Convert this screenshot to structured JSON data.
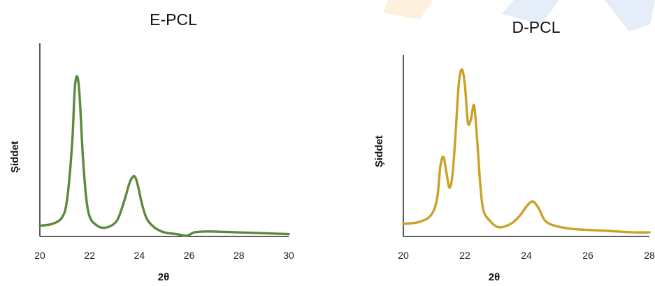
{
  "chart_data": [
    {
      "type": "line",
      "title": "E-PCL",
      "xlabel": "2θ",
      "ylabel": "Şiddet",
      "xlim": [
        20,
        30
      ],
      "ylim": [
        0,
        100
      ],
      "xticks": [
        "20",
        "22",
        "24",
        "26",
        "28",
        "30"
      ],
      "grid": false,
      "legend": "none",
      "color": "#5a8a3c",
      "series": [
        {
          "x": [
            20.0,
            20.5,
            20.9,
            21.1,
            21.3,
            21.4,
            21.5,
            21.6,
            21.75,
            21.95,
            22.3,
            22.7,
            23.1,
            23.4,
            23.6,
            23.75,
            23.85,
            23.95,
            24.1,
            24.3,
            24.6,
            25.0,
            25.5,
            25.9,
            26.2,
            26.6,
            27.0,
            28.0,
            29.0,
            30.0
          ],
          "y": [
            6,
            7,
            11,
            22,
            55,
            86,
            94,
            82,
            42,
            14,
            6,
            5,
            9,
            21,
            31,
            35,
            34,
            29,
            19,
            10,
            5,
            2,
            1,
            0,
            2,
            2.5,
            2.5,
            2,
            1.5,
            1
          ]
        }
      ]
    },
    {
      "type": "line",
      "title": "D-PCL",
      "xlabel": "2θ",
      "ylabel": "Şiddet",
      "xlim": [
        20,
        28
      ],
      "ylim": [
        0,
        100
      ],
      "xticks": [
        "20",
        "22",
        "24",
        "26",
        "28"
      ],
      "grid": false,
      "legend": "none",
      "color": "#c9a227",
      "series": [
        {
          "x": [
            20.0,
            20.5,
            20.9,
            21.1,
            21.2,
            21.3,
            21.4,
            21.5,
            21.6,
            21.7,
            21.8,
            21.9,
            22.0,
            22.1,
            22.2,
            22.3,
            22.4,
            22.5,
            22.6,
            22.8,
            23.1,
            23.5,
            23.8,
            24.0,
            24.2,
            24.4,
            24.6,
            24.9,
            25.5,
            26.5,
            27.5,
            28.0
          ],
          "y": [
            7,
            8,
            12,
            22,
            40,
            46,
            37,
            28,
            36,
            60,
            88,
            97,
            88,
            66,
            68,
            76,
            56,
            30,
            15,
            9,
            5,
            7,
            12,
            17,
            20,
            16,
            9,
            6,
            4,
            3,
            2,
            2
          ]
        }
      ]
    }
  ]
}
